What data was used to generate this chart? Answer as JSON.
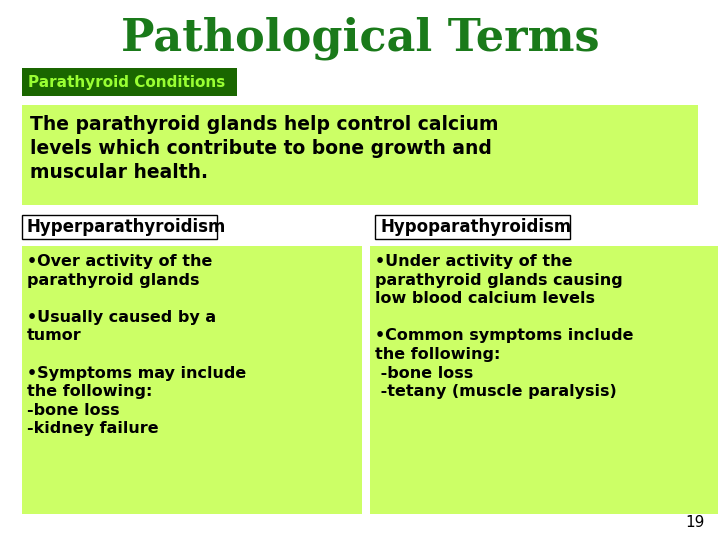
{
  "title": "Pathological Terms",
  "title_color": "#1a7a1a",
  "title_fontsize": 32,
  "bg_color": "#ffffff",
  "light_green": "#ccff66",
  "dark_green": "#1a6600",
  "header_label": "Parathyroid Conditions",
  "header_text_color": "#99ff33",
  "intro_text": "The parathyroid glands help control calcium\nlevels which contribute to bone growth and\nmuscular health.",
  "left_header": "Hyperparathyroidism",
  "right_header": "Hypoparathyroidism",
  "left_content": "•Over activity of the\nparathyroid glands\n\n•Usually caused by a\ntumor\n\n•Symptoms may include\nthe following:\n-bone loss\n-kidney failure",
  "right_content": "•Under activity of the\nparathyroid glands causing\nlow blood calcium levels\n\n•Common symptoms include\nthe following:\n -bone loss\n -tetany (muscle paralysis)",
  "page_number": "19",
  "content_fontsize": 11.5,
  "subheader_fontsize": 12,
  "intro_fontsize": 13.5
}
